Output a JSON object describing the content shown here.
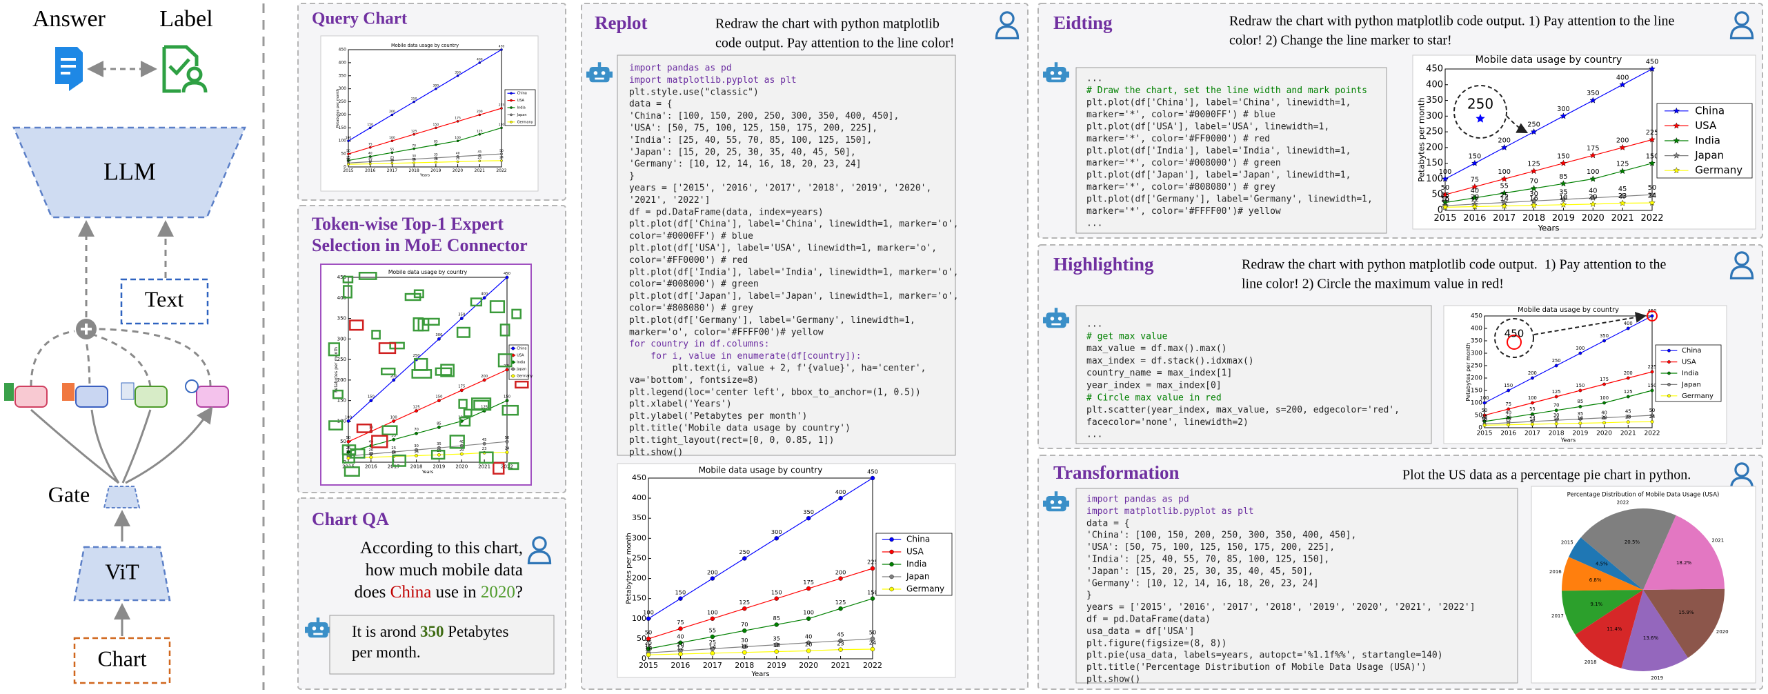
{
  "left": {
    "answer": "Answer",
    "label": "Label",
    "llm": "LLM",
    "text": "Text",
    "gate": "Gate",
    "vit": "ViT",
    "chart": "Chart"
  },
  "query_chart": {
    "title": "Query Chart"
  },
  "token_wise": {
    "title": [
      "Token-wise Top-1 Expert",
      "Selection in MoE Connector"
    ]
  },
  "chart_qa": {
    "title": "Chart QA",
    "question": [
      [
        "According to this chart,"
      ],
      [
        "how much mobile data"
      ],
      [
        "does ",
        {
          "text": "China",
          "color": "#c00000"
        },
        " use in ",
        {
          "text": "2020",
          "color": "#4e9a2a"
        },
        "?"
      ]
    ],
    "answer": [
      [
        "It is arond ",
        {
          "text": "350",
          "color": "#3d6b12",
          "bold": true
        },
        " Petabytes"
      ],
      [
        "per month."
      ]
    ]
  },
  "replot": {
    "title": "Replot",
    "instruction": [
      "Redraw the chart with python matplotlib",
      "code output. Pay attention to the line color!"
    ],
    "code": [
      "import pandas as pd",
      "import matplotlib.pyplot as plt",
      "plt.style.use(\"classic\")",
      "data = {",
      "'China': [100, 150, 200, 250, 300, 350, 400, 450],",
      "'USA': [50, 75, 100, 125, 150, 175, 200, 225],",
      "'India': [25, 40, 55, 70, 85, 100, 125, 150],",
      "'Japan': [15, 20, 25, 30, 35, 40, 45, 50],",
      "'Germany': [10, 12, 14, 16, 18, 20, 23, 24]",
      "}",
      "years = ['2015', '2016', '2017', '2018', '2019', '2020',",
      "'2021', '2022']",
      "df = pd.DataFrame(data, index=years)",
      "plt.plot(df['China'], label='China', linewidth=1, marker='o',",
      "color='#0000FF') # blue",
      "plt.plot(df['USA'], label='USA', linewidth=1, marker='o',",
      "color='#FF0000') # red",
      "plt.plot(df['India'], label='India', linewidth=1, marker='o',",
      "color='#008000') # green",
      "plt.plot(df['Japan'], label='Japan', linewidth=1, marker='o',",
      "color='#808080') # grey",
      "plt.plot(df['Germany'], label='Germany', linewidth=1,",
      "marker='o', color='#FFFF00')# yellow",
      "for country in df.columns:",
      "    for i, value in enumerate(df[country]):",
      "        plt.text(i, value + 2, f'{value}', ha='center',",
      "va='bottom', fontsize=8)",
      "plt.legend(loc='center left', bbox_to_anchor=(1, 0.5))",
      "plt.xlabel('Years')",
      "plt.ylabel('Petabytes per month')",
      "plt.title('Mobile data usage by country')",
      "plt.tight_layout(rect=[0, 0, 0.85, 1])",
      "plt.show()"
    ]
  },
  "editing": {
    "title": "Eidting",
    "instruction": [
      "Redraw the chart with python matplotlib code output. 1) Pay attention to the line",
      "color! 2) Change the line marker to star!"
    ],
    "zoom_label": "250",
    "code": [
      "...",
      "# Draw the chart, set the line width and mark points",
      "plt.plot(df['China'], label='China', linewidth=1,",
      "marker='*', color='#0000FF') # blue",
      "plt.plot(df['USA'], label='USA', linewidth=1,",
      "marker='*', color='#FF0000') # red",
      "plt.plot(df['India'], label='India', linewidth=1,",
      "marker='*', color='#008000') # green",
      "plt.plot(df['Japan'], label='Japan', linewidth=1,",
      "marker='*', color='#808080') # grey",
      "plt.plot(df['Germany'], label='Germany', linewidth=1,",
      "marker='*', color='#FFFF00')# yellow",
      "..."
    ]
  },
  "highlighting": {
    "title": "Highlighting",
    "instruction": [
      "Redraw the chart with python matplotlib code output.  1) Pay attention to the",
      "line color! 2) Circle the maximum value in red!"
    ],
    "zoom_label": "450",
    "code": [
      "...",
      "# get max value",
      "max_value = df.max().max()",
      "max_index = df.stack().idxmax()",
      "country_name = max_index[1]",
      "year_index = max_index[0]",
      "# Circle max value in red",
      "plt.scatter(year_index, max_value, s=200, edgecolor='red',",
      "facecolor='none', linewidth=2)",
      "..."
    ]
  },
  "transformation": {
    "title": "Transformation",
    "instruction": [
      "Plot the US data as a percentage pie chart in python."
    ],
    "code": [
      "import pandas as pd",
      "import matplotlib.pyplot as plt",
      "data = {",
      "'China': [100, 150, 200, 250, 300, 350, 400, 450],",
      "'USA': [50, 75, 100, 125, 150, 175, 200, 225],",
      "'India': [25, 40, 55, 70, 85, 100, 125, 150],",
      "'Japan': [15, 20, 25, 30, 35, 40, 45, 50],",
      "'Germany': [10, 12, 14, 16, 18, 20, 23, 24]",
      "}",
      "years = ['2015', '2016', '2017', '2018', '2019', '2020', '2021', '2022']",
      "df = pd.DataFrame(data)",
      "usa_data = df['USA']",
      "plt.figure(figsize=(8, 8))",
      "plt.pie(usa_data, labels=years, autopct='%1.1f%%', startangle=140)",
      "plt.title('Percentage Distribution of Mobile Data Usage (USA)')",
      "plt.show()"
    ]
  },
  "chart_data": [
    {
      "type": "line",
      "title": "Mobile data usage by country",
      "xlabel": "Years",
      "ylabel": "Petabytes per month",
      "x": [
        2015,
        2016,
        2017,
        2018,
        2019,
        2020,
        2021,
        2022
      ],
      "xlim": [
        2015,
        2022
      ],
      "xticks": [
        2015,
        2016,
        2017,
        2018,
        2019,
        2020,
        2021,
        2022
      ],
      "ylim": [
        0,
        450
      ],
      "yticks": [
        0,
        50,
        100,
        150,
        200,
        250,
        300,
        350,
        400,
        450
      ],
      "series": [
        {
          "name": "China",
          "color": "#0000FF",
          "values": [
            100,
            150,
            200,
            250,
            300,
            350,
            400,
            450
          ]
        },
        {
          "name": "USA",
          "color": "#FF0000",
          "values": [
            50,
            75,
            100,
            125,
            150,
            175,
            200,
            225
          ]
        },
        {
          "name": "India",
          "color": "#008000",
          "values": [
            25,
            40,
            55,
            70,
            85,
            100,
            125,
            150
          ]
        },
        {
          "name": "Japan",
          "color": "#808080",
          "values": [
            15,
            20,
            25,
            30,
            35,
            40,
            45,
            50
          ]
        },
        {
          "name": "Germany",
          "color": "#FFFF00",
          "values": [
            10,
            12,
            14,
            16,
            18,
            20,
            23,
            24
          ]
        }
      ]
    },
    {
      "type": "pie",
      "title": "Percentage Distribution of Mobile Data Usage (USA)",
      "categories": [
        "2015",
        "2016",
        "2017",
        "2018",
        "2019",
        "2020",
        "2021",
        "2022"
      ],
      "values": [
        4.5,
        6.8,
        9.1,
        11.4,
        13.6,
        15.9,
        18.2,
        20.5
      ],
      "value_labels": [
        "4.5%",
        "6.8%",
        "9.1%",
        "11.4%",
        "13.6%",
        "15.9%",
        "18.2%",
        "20.5%"
      ],
      "colors": [
        "#1f77b4",
        "#ff7f0e",
        "#2ca02c",
        "#d62728",
        "#9467bd",
        "#8c564b",
        "#e377c2",
        "#7f7f7f"
      ],
      "startangle": 140
    }
  ]
}
